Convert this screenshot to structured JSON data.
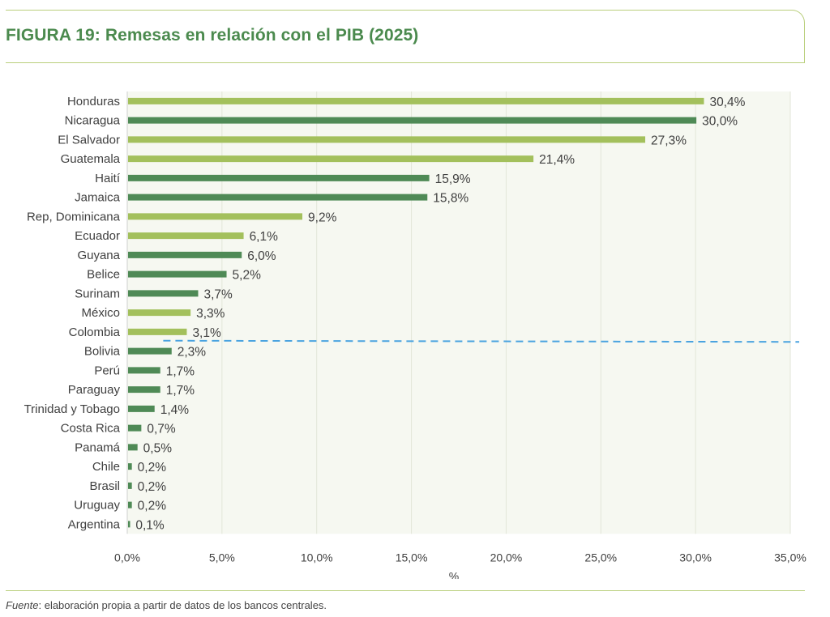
{
  "title": "FIGURA 19: Remesas en relación con el PIB (2025)",
  "source": {
    "label": "Fuente",
    "text": ": elaboración propia a partir de datos de los bancos centrales."
  },
  "colors": {
    "title": "#4b8a4e",
    "bar_light": "#a3c05c",
    "bar_dark": "#4f8a56",
    "plot_bg": "#f6f8f1",
    "grid": "#e2e6d8",
    "threshold": "#4aa3e0",
    "text": "#404040",
    "rule": "#b9cf7c"
  },
  "chart_data": {
    "type": "bar",
    "orientation": "horizontal",
    "categories": [
      "Honduras",
      "Nicaragua",
      "El Salvador",
      "Guatemala",
      "Haití",
      "Jamaica",
      "Rep, Dominicana",
      "Ecuador",
      "Guyana",
      "Belice",
      "Surinam",
      "México",
      "Colombia",
      "Bolivia",
      "Perú",
      "Paraguay",
      "Trinidad y Tobago",
      "Costa Rica",
      "Panamá",
      "Chile",
      "Brasil",
      "Uruguay",
      "Argentina"
    ],
    "values": [
      30.4,
      30.0,
      27.3,
      21.4,
      15.9,
      15.8,
      9.2,
      6.1,
      6.0,
      5.2,
      3.7,
      3.3,
      3.1,
      2.3,
      1.7,
      1.7,
      1.4,
      0.7,
      0.5,
      0.2,
      0.2,
      0.2,
      0.1
    ],
    "value_labels": [
      "30,4%",
      "30,0%",
      "27,3%",
      "21,4%",
      "15,9%",
      "15,8%",
      "9,2%",
      "6,1%",
      "6,0%",
      "5,2%",
      "3,7%",
      "3,3%",
      "3,1%",
      "2,3%",
      "1,7%",
      "1,7%",
      "1,4%",
      "0,7%",
      "0,5%",
      "0,2%",
      "0,2%",
      "0,2%",
      "0,1%"
    ],
    "bar_color_group": [
      "light",
      "dark",
      "light",
      "light",
      "dark",
      "dark",
      "light",
      "light",
      "dark",
      "dark",
      "dark",
      "light",
      "light",
      "dark",
      "dark",
      "dark",
      "dark",
      "dark",
      "dark",
      "dark",
      "dark",
      "dark",
      "dark"
    ],
    "xlim": [
      0,
      35
    ],
    "xticks": [
      0,
      5,
      10,
      15,
      20,
      25,
      30,
      35
    ],
    "xtick_labels": [
      "0,0%",
      "5,0%",
      "10,0%",
      "15,0%",
      "20,0%",
      "25,0%",
      "30,0%",
      "35,0%"
    ],
    "xlabel": "%",
    "ylabel": "",
    "grid": true,
    "threshold_line": {
      "between": [
        "Colombia",
        "Bolivia"
      ],
      "style": "dashed"
    }
  }
}
